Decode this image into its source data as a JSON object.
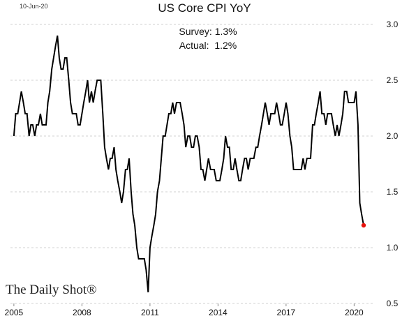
{
  "header": {
    "date_stamp": "10-Jun-20"
  },
  "brand": {
    "text": "The Daily Shot®"
  },
  "chart_data": {
    "type": "line",
    "title": "US Core CPI YoY",
    "annotations": [
      "Survey: 1.3%",
      "Actual:  1.2%"
    ],
    "xlabel": "",
    "ylabel": "",
    "x_ticks": [
      "2005",
      "2008",
      "2011",
      "2014",
      "2017",
      "2020"
    ],
    "y_ticks": [
      "0.5",
      "1.0",
      "1.5",
      "2.0",
      "2.5",
      "3.0"
    ],
    "xlim": [
      2004.85,
      2020.85
    ],
    "ylim": [
      0.5,
      3.0
    ],
    "grid": "horizontal dashed",
    "line_color": "#000000",
    "marker_color": "#e8120c",
    "series": [
      {
        "x": [
          2005.0,
          2005.08,
          2005.17,
          2005.25,
          2005.33,
          2005.42,
          2005.5,
          2005.58,
          2005.67,
          2005.75,
          2005.83,
          2005.92,
          2006.0,
          2006.08,
          2006.17,
          2006.25,
          2006.33,
          2006.42,
          2006.5,
          2006.58,
          2006.67,
          2006.75,
          2006.83,
          2006.92,
          2007.0,
          2007.08,
          2007.17,
          2007.25,
          2007.33,
          2007.42,
          2007.5,
          2007.58,
          2007.67,
          2007.75,
          2007.83,
          2007.92,
          2008.0,
          2008.08,
          2008.17,
          2008.25,
          2008.33,
          2008.42,
          2008.5,
          2008.58,
          2008.67,
          2008.75,
          2008.83,
          2008.92,
          2009.0,
          2009.08,
          2009.17,
          2009.25,
          2009.33,
          2009.42,
          2009.5,
          2009.58,
          2009.67,
          2009.75,
          2009.83,
          2009.92,
          2010.0,
          2010.08,
          2010.17,
          2010.25,
          2010.33,
          2010.42,
          2010.5,
          2010.58,
          2010.67,
          2010.75,
          2010.83,
          2010.92,
          2011.0,
          2011.08,
          2011.17,
          2011.25,
          2011.33,
          2011.42,
          2011.5,
          2011.58,
          2011.67,
          2011.75,
          2011.83,
          2011.92,
          2012.0,
          2012.08,
          2012.17,
          2012.25,
          2012.33,
          2012.42,
          2012.5,
          2012.58,
          2012.67,
          2012.75,
          2012.83,
          2012.92,
          2013.0,
          2013.08,
          2013.17,
          2013.25,
          2013.33,
          2013.42,
          2013.5,
          2013.58,
          2013.67,
          2013.75,
          2013.83,
          2013.92,
          2014.0,
          2014.08,
          2014.17,
          2014.25,
          2014.33,
          2014.42,
          2014.5,
          2014.58,
          2014.67,
          2014.75,
          2014.83,
          2014.92,
          2015.0,
          2015.08,
          2015.17,
          2015.25,
          2015.33,
          2015.42,
          2015.5,
          2015.58,
          2015.67,
          2015.75,
          2015.83,
          2015.92,
          2016.0,
          2016.08,
          2016.17,
          2016.25,
          2016.33,
          2016.42,
          2016.5,
          2016.58,
          2016.67,
          2016.75,
          2016.83,
          2016.92,
          2017.0,
          2017.08,
          2017.17,
          2017.25,
          2017.33,
          2017.42,
          2017.5,
          2017.58,
          2017.67,
          2017.75,
          2017.83,
          2017.92,
          2018.0,
          2018.08,
          2018.17,
          2018.25,
          2018.33,
          2018.42,
          2018.5,
          2018.58,
          2018.67,
          2018.75,
          2018.83,
          2018.92,
          2019.0,
          2019.08,
          2019.17,
          2019.25,
          2019.33,
          2019.42,
          2019.5,
          2019.58,
          2019.67,
          2019.75,
          2019.83,
          2019.92,
          2020.0,
          2020.08,
          2020.17,
          2020.25,
          2020.33,
          2020.42
        ],
        "y": [
          2.0,
          2.2,
          2.2,
          2.3,
          2.4,
          2.3,
          2.2,
          2.2,
          2.0,
          2.1,
          2.1,
          2.0,
          2.1,
          2.1,
          2.2,
          2.1,
          2.1,
          2.1,
          2.3,
          2.4,
          2.6,
          2.7,
          2.8,
          2.9,
          2.7,
          2.6,
          2.6,
          2.7,
          2.7,
          2.5,
          2.3,
          2.2,
          2.2,
          2.2,
          2.1,
          2.1,
          2.2,
          2.3,
          2.4,
          2.5,
          2.3,
          2.4,
          2.3,
          2.4,
          2.5,
          2.5,
          2.5,
          2.2,
          1.9,
          1.8,
          1.7,
          1.8,
          1.8,
          1.9,
          1.7,
          1.6,
          1.5,
          1.4,
          1.5,
          1.7,
          1.7,
          1.8,
          1.5,
          1.3,
          1.2,
          1.0,
          0.9,
          0.9,
          0.9,
          0.9,
          0.8,
          0.6,
          1.0,
          1.1,
          1.2,
          1.3,
          1.5,
          1.6,
          1.8,
          2.0,
          2.0,
          2.1,
          2.2,
          2.2,
          2.3,
          2.2,
          2.3,
          2.3,
          2.3,
          2.2,
          2.1,
          1.9,
          2.0,
          2.0,
          1.9,
          1.9,
          2.0,
          2.0,
          1.9,
          1.7,
          1.7,
          1.6,
          1.7,
          1.8,
          1.7,
          1.7,
          1.7,
          1.6,
          1.6,
          1.6,
          1.7,
          1.8,
          2.0,
          1.9,
          1.9,
          1.7,
          1.7,
          1.8,
          1.7,
          1.6,
          1.6,
          1.7,
          1.8,
          1.8,
          1.7,
          1.8,
          1.8,
          1.8,
          1.9,
          1.9,
          2.0,
          2.1,
          2.2,
          2.3,
          2.2,
          2.1,
          2.2,
          2.2,
          2.2,
          2.3,
          2.2,
          2.1,
          2.1,
          2.2,
          2.3,
          2.2,
          2.0,
          1.9,
          1.7,
          1.7,
          1.7,
          1.7,
          1.7,
          1.8,
          1.7,
          1.8,
          1.8,
          1.8,
          2.1,
          2.1,
          2.2,
          2.3,
          2.4,
          2.2,
          2.2,
          2.1,
          2.2,
          2.2,
          2.2,
          2.1,
          2.0,
          2.1,
          2.0,
          2.1,
          2.2,
          2.4,
          2.4,
          2.3,
          2.3,
          2.3,
          2.3,
          2.4,
          2.1,
          1.4,
          1.3,
          1.2
        ]
      }
    ],
    "last_point": {
      "x": 2020.42,
      "y": 1.2
    }
  }
}
